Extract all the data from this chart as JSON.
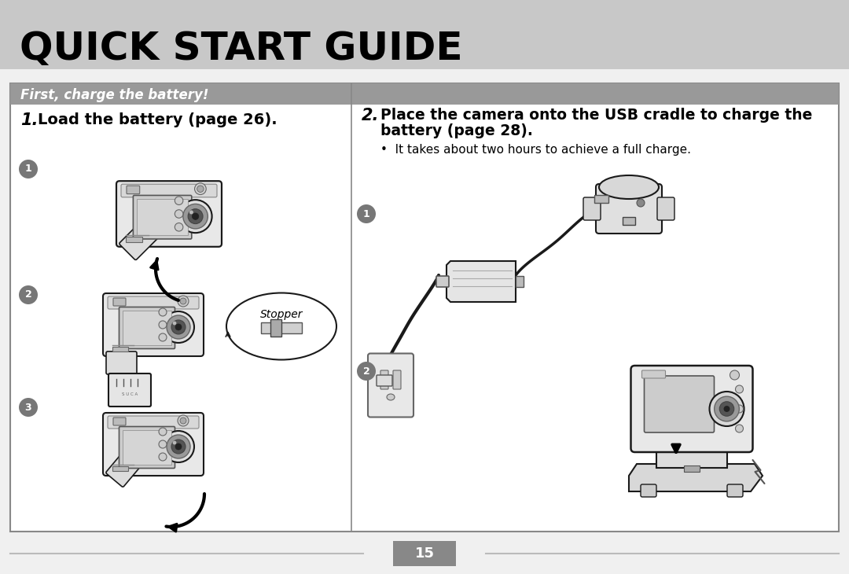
{
  "bg_color": "#f0f0f0",
  "header_bg": "#c8c8c8",
  "header_text": "QUICK START GUIDE",
  "section_bar_color": "#999999",
  "section_text": "First, charge the battery!",
  "inner_bg": "#ffffff",
  "border_color": "#888888",
  "step1_italic": "1.",
  "step1_bold": "  Load the battery (page 26).",
  "step2_italic": "2.",
  "step2_bold_line1": "  Place the camera onto the USB cradle to charge the",
  "step2_bold_line2": "     battery (page 28).",
  "bullet": "•  It takes about two hours to achieve a full charge.",
  "stopper_label": "Stopper",
  "page_number": "15",
  "page_box_color": "#888888",
  "page_text_color": "#ffffff",
  "divider_color": "#bbbbbb",
  "circle_bg": "#777777",
  "circle_fg": "#ffffff",
  "draw_color": "#1a1a1a",
  "light_gray": "#e8e8e8",
  "mid_gray": "#bbbbbb",
  "dark_gray": "#444444",
  "screen_color": "#cccccc"
}
